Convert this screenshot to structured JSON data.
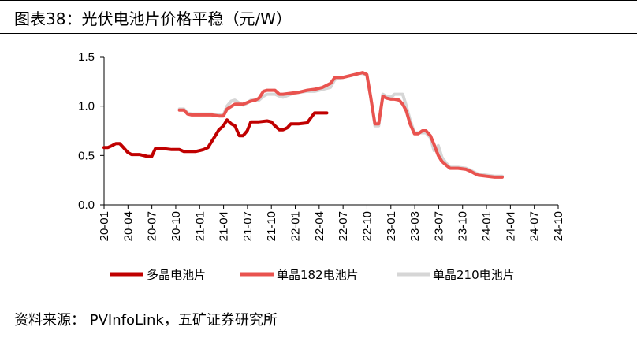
{
  "header": {
    "title": "图表38：光伏电池片价格平稳（元/W）"
  },
  "footer": {
    "source": "资料来源：  PVInfoLink，五矿证券研究所"
  },
  "chart_data": {
    "type": "line",
    "title": "图表38：光伏电池片价格平稳（元/W）",
    "xlabel": "",
    "ylabel": "",
    "ylim": [
      0,
      1.5
    ],
    "yticks": [
      "0.0",
      "0.5",
      "1.0",
      "1.5"
    ],
    "xticks": [
      "20-01",
      "20-04",
      "20-07",
      "20-10",
      "21-01",
      "21-04",
      "21-07",
      "21-10",
      "22-01",
      "22-04",
      "22-07",
      "22-10",
      "23-01",
      "23-03",
      "23-07",
      "23-10",
      "24-01",
      "24-04",
      "24-07",
      "24-10"
    ],
    "grid": false,
    "legend_position": "bottom",
    "series": [
      {
        "name": "多晶电池片",
        "color": "#c00000",
        "points": [
          [
            "2020-01-01",
            0.58
          ],
          [
            "2020-01-15",
            0.58
          ],
          [
            "2020-02-01",
            0.6
          ],
          [
            "2020-02-15",
            0.62
          ],
          [
            "2020-03-01",
            0.62
          ],
          [
            "2020-03-15",
            0.58
          ],
          [
            "2020-04-01",
            0.53
          ],
          [
            "2020-04-15",
            0.51
          ],
          [
            "2020-05-15",
            0.51
          ],
          [
            "2020-06-15",
            0.49
          ],
          [
            "2020-07-01",
            0.49
          ],
          [
            "2020-07-15",
            0.57
          ],
          [
            "2020-08-15",
            0.57
          ],
          [
            "2020-09-15",
            0.56
          ],
          [
            "2020-10-15",
            0.56
          ],
          [
            "2020-11-01",
            0.54
          ],
          [
            "2020-11-15",
            0.54
          ],
          [
            "2020-12-15",
            0.54
          ],
          [
            "2021-01-01",
            0.55
          ],
          [
            "2021-01-15",
            0.56
          ],
          [
            "2021-02-01",
            0.58
          ],
          [
            "2021-02-15",
            0.64
          ],
          [
            "2021-03-01",
            0.7
          ],
          [
            "2021-03-15",
            0.76
          ],
          [
            "2021-04-01",
            0.8
          ],
          [
            "2021-04-15",
            0.86
          ],
          [
            "2021-05-01",
            0.82
          ],
          [
            "2021-05-15",
            0.8
          ],
          [
            "2021-06-01",
            0.7
          ],
          [
            "2021-06-15",
            0.7
          ],
          [
            "2021-07-01",
            0.75
          ],
          [
            "2021-07-15",
            0.84
          ],
          [
            "2021-08-15",
            0.84
          ],
          [
            "2021-09-15",
            0.85
          ],
          [
            "2021-10-01",
            0.84
          ],
          [
            "2021-10-15",
            0.8
          ],
          [
            "2021-11-01",
            0.76
          ],
          [
            "2021-11-15",
            0.76
          ],
          [
            "2021-12-01",
            0.78
          ],
          [
            "2021-12-15",
            0.82
          ],
          [
            "2022-01-15",
            0.82
          ],
          [
            "2022-02-15",
            0.83
          ],
          [
            "2022-03-01",
            0.88
          ],
          [
            "2022-03-15",
            0.93
          ],
          [
            "2022-04-15",
            0.93
          ],
          [
            "2022-05-01",
            0.93
          ]
        ]
      },
      {
        "name": "单晶182电池片",
        "color": "#e9534f",
        "points": [
          [
            "2020-10-15",
            0.96
          ],
          [
            "2020-11-01",
            0.96
          ],
          [
            "2020-11-15",
            0.92
          ],
          [
            "2020-12-01",
            0.91
          ],
          [
            "2021-01-15",
            0.91
          ],
          [
            "2021-02-15",
            0.91
          ],
          [
            "2021-03-15",
            0.9
          ],
          [
            "2021-04-01",
            0.9
          ],
          [
            "2021-04-15",
            0.97
          ],
          [
            "2021-05-15",
            1.02
          ],
          [
            "2021-06-15",
            1.02
          ],
          [
            "2021-07-15",
            1.05
          ],
          [
            "2021-08-01",
            1.06
          ],
          [
            "2021-08-15",
            1.08
          ],
          [
            "2021-09-01",
            1.15
          ],
          [
            "2021-09-15",
            1.16
          ],
          [
            "2021-10-15",
            1.16
          ],
          [
            "2021-11-01",
            1.12
          ],
          [
            "2021-11-15",
            1.12
          ],
          [
            "2021-12-15",
            1.13
          ],
          [
            "2022-01-15",
            1.14
          ],
          [
            "2022-02-15",
            1.16
          ],
          [
            "2022-03-15",
            1.17
          ],
          [
            "2022-04-15",
            1.19
          ],
          [
            "2022-05-15",
            1.23
          ],
          [
            "2022-06-01",
            1.29
          ],
          [
            "2022-07-01",
            1.29
          ],
          [
            "2022-08-01",
            1.31
          ],
          [
            "2022-09-01",
            1.33
          ],
          [
            "2022-09-15",
            1.34
          ],
          [
            "2022-10-01",
            1.32
          ],
          [
            "2022-10-15",
            1.1
          ],
          [
            "2022-11-01",
            0.82
          ],
          [
            "2022-11-15",
            0.82
          ],
          [
            "2022-12-01",
            1.1
          ],
          [
            "2022-12-15",
            1.08
          ],
          [
            "2023-01-01",
            1.07
          ],
          [
            "2023-01-15",
            1.07
          ],
          [
            "2023-02-01",
            1.06
          ],
          [
            "2023-02-15",
            1.02
          ],
          [
            "2023-03-01",
            0.95
          ],
          [
            "2023-03-15",
            0.82
          ],
          [
            "2023-04-01",
            0.72
          ],
          [
            "2023-04-15",
            0.72
          ],
          [
            "2023-05-01",
            0.75
          ],
          [
            "2023-05-15",
            0.75
          ],
          [
            "2023-06-01",
            0.7
          ],
          [
            "2023-06-15",
            0.61
          ],
          [
            "2023-07-01",
            0.5
          ],
          [
            "2023-07-15",
            0.44
          ],
          [
            "2023-08-01",
            0.4
          ],
          [
            "2023-08-15",
            0.37
          ],
          [
            "2023-09-15",
            0.37
          ],
          [
            "2023-10-15",
            0.36
          ],
          [
            "2023-11-01",
            0.34
          ],
          [
            "2023-11-15",
            0.32
          ],
          [
            "2023-12-01",
            0.3
          ],
          [
            "2024-01-01",
            0.29
          ],
          [
            "2024-02-01",
            0.28
          ],
          [
            "2024-03-01",
            0.28
          ]
        ]
      },
      {
        "name": "单晶210电池片",
        "color": "#d6d6d6",
        "points": [
          [
            "2020-10-15",
            0.97
          ],
          [
            "2020-11-01",
            0.97
          ],
          [
            "2020-11-15",
            0.93
          ],
          [
            "2020-12-01",
            0.92
          ],
          [
            "2021-01-15",
            0.92
          ],
          [
            "2021-02-15",
            0.92
          ],
          [
            "2021-03-15",
            0.91
          ],
          [
            "2021-04-01",
            0.91
          ],
          [
            "2021-04-15",
            1.0
          ],
          [
            "2021-05-01",
            1.05
          ],
          [
            "2021-05-15",
            1.06
          ],
          [
            "2021-06-01",
            1.03
          ],
          [
            "2021-06-15",
            1.01
          ],
          [
            "2021-07-01",
            1.03
          ],
          [
            "2021-07-15",
            1.06
          ],
          [
            "2021-08-15",
            1.06
          ],
          [
            "2021-09-01",
            1.1
          ],
          [
            "2021-09-15",
            1.12
          ],
          [
            "2021-10-15",
            1.12
          ],
          [
            "2021-11-01",
            1.1
          ],
          [
            "2021-11-15",
            1.09
          ],
          [
            "2021-12-15",
            1.12
          ],
          [
            "2022-01-15",
            1.14
          ],
          [
            "2022-02-15",
            1.15
          ],
          [
            "2022-03-15",
            1.15
          ],
          [
            "2022-04-15",
            1.17
          ],
          [
            "2022-05-15",
            1.19
          ],
          [
            "2022-06-01",
            1.27
          ],
          [
            "2022-07-01",
            1.29
          ],
          [
            "2022-08-01",
            1.31
          ],
          [
            "2022-09-01",
            1.33
          ],
          [
            "2022-09-15",
            1.33
          ],
          [
            "2022-10-01",
            1.31
          ],
          [
            "2022-10-15",
            1.1
          ],
          [
            "2022-11-01",
            0.8
          ],
          [
            "2022-11-15",
            0.8
          ],
          [
            "2022-12-01",
            1.12
          ],
          [
            "2022-12-15",
            1.1
          ],
          [
            "2023-01-01",
            1.09
          ],
          [
            "2023-01-15",
            1.12
          ],
          [
            "2023-02-15",
            1.12
          ],
          [
            "2023-03-01",
            1.0
          ],
          [
            "2023-03-15",
            0.86
          ],
          [
            "2023-04-01",
            0.73
          ],
          [
            "2023-04-15",
            0.73
          ],
          [
            "2023-05-15",
            0.73
          ],
          [
            "2023-06-01",
            0.68
          ],
          [
            "2023-06-15",
            0.55
          ],
          [
            "2023-07-01",
            0.6
          ],
          [
            "2023-07-15",
            0.48
          ],
          [
            "2023-08-01",
            0.42
          ],
          [
            "2023-08-15",
            0.38
          ],
          [
            "2023-09-15",
            0.38
          ],
          [
            "2023-10-15",
            0.37
          ],
          [
            "2023-11-01",
            0.35
          ],
          [
            "2023-11-15",
            0.33
          ],
          [
            "2023-12-01",
            0.31
          ],
          [
            "2024-01-01",
            0.3
          ],
          [
            "2024-02-01",
            0.29
          ],
          [
            "2024-03-01",
            0.29
          ]
        ]
      }
    ]
  }
}
